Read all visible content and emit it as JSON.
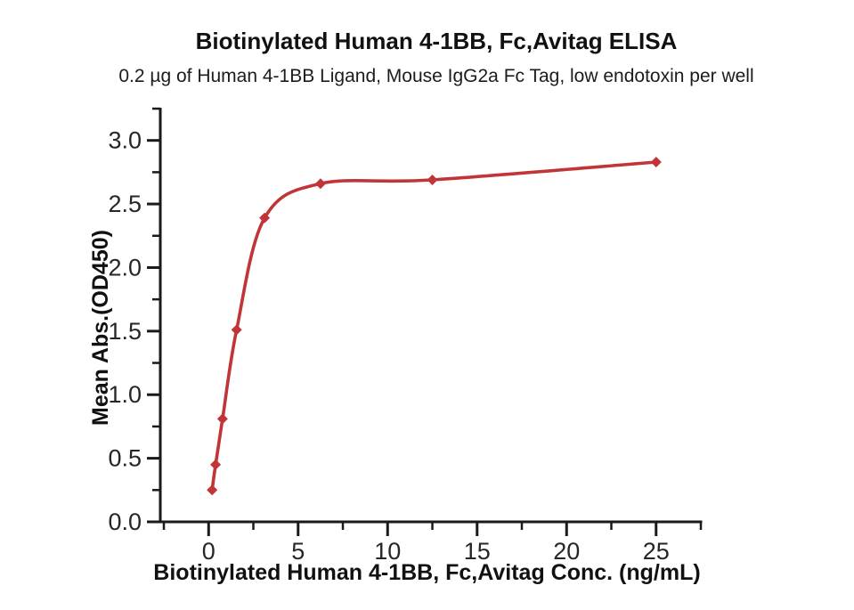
{
  "chart_data": {
    "type": "line",
    "title": "Biotinylated Human 4-1BB, Fc,Avitag ELISA",
    "subtitle": "0.2 µg of Human 4-1BB Ligand, Mouse IgG2a Fc Tag, low endotoxin per well",
    "xlabel": "Biotinylated Human 4-1BB, Fc,Avitag Conc. (ng/mL)",
    "ylabel": "Mean Abs.(OD450)",
    "x_axis": {
      "min": -2.7,
      "max": 27.5,
      "major_ticks": [
        0,
        5,
        10,
        15,
        20,
        25
      ],
      "tick_labels": [
        "0",
        "5",
        "10",
        "15",
        "20",
        "25"
      ],
      "minor_tick_step": 2.5
    },
    "y_axis": {
      "min": 0,
      "max": 3.25,
      "major_ticks": [
        0,
        0.5,
        1,
        1.5,
        2,
        2.5,
        3
      ],
      "tick_labels": [
        "0.0",
        "0.5",
        "1.0",
        "1.5",
        "2.0",
        "2.5",
        "3.0"
      ],
      "minor_tick_step": 0.25
    },
    "series": [
      {
        "name": "Biotinylated Human 4-1BB, Fc,Avitag",
        "color": "#c13539",
        "marker": "diamond",
        "points": [
          {
            "x": 0.195,
            "y": 0.25
          },
          {
            "x": 0.39,
            "y": 0.45
          },
          {
            "x": 0.78,
            "y": 0.81
          },
          {
            "x": 1.5625,
            "y": 1.51
          },
          {
            "x": 3.125,
            "y": 2.39
          },
          {
            "x": 6.25,
            "y": 2.66
          },
          {
            "x": 12.5,
            "y": 2.69
          },
          {
            "x": 25,
            "y": 2.83
          }
        ]
      }
    ],
    "grid": false,
    "legend": false,
    "axis_color": "#1a1a1a",
    "tick_label_color": "#262626",
    "background": "#ffffff"
  }
}
